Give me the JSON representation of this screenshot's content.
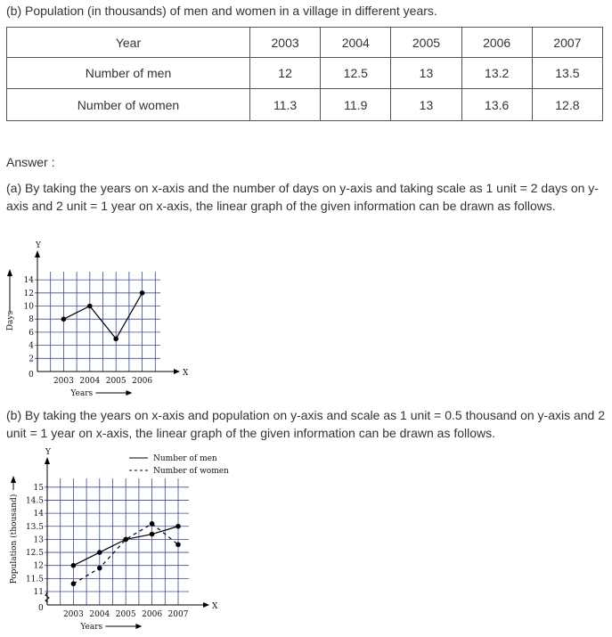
{
  "heading": "(b) Population (in thousands) of men and women in a village in different years.",
  "table": {
    "header": [
      "Year",
      "2003",
      "2004",
      "2005",
      "2006",
      "2007"
    ],
    "rows": [
      [
        "Number of men",
        "12",
        "12.5",
        "13",
        "13.2",
        "13.5"
      ],
      [
        "Number of women",
        "11.3",
        "11.9",
        "13",
        "13.6",
        "12.8"
      ]
    ]
  },
  "answer_label": "Answer :",
  "para_a": "(a) By taking the years on x-axis and the number of days on y-axis and taking scale as 1 unit = 2 days on y-axis and 2 unit = 1 year on x-axis, the linear graph of the given information can be drawn as follows.",
  "para_b": "(b) By taking the years on x-axis and population on y-axis and scale as 1 unit = 0.5 thousand on y-axis and 2 unit = 1 year on x-axis, the linear graph of the given information can be drawn as follows.",
  "colors": {
    "grid": "#3b4a9a",
    "line": "#000000"
  },
  "chart_data": [
    {
      "type": "line",
      "xlabel": "Years",
      "ylabel": "Days",
      "x_axis_letter": "X",
      "y_axis_letter": "Y",
      "origin_label": "0",
      "categories": [
        "2003",
        "2004",
        "2005",
        "2006"
      ],
      "yticks": [
        "2",
        "4",
        "6",
        "8",
        "10",
        "12",
        "14"
      ],
      "ylim": [
        0,
        14
      ],
      "grid": true,
      "series": [
        {
          "values": [
            8,
            10,
            5,
            12
          ],
          "style": "solid"
        }
      ]
    },
    {
      "type": "line",
      "xlabel": "Years",
      "ylabel": "Population (thousand)",
      "x_axis_letter": "X",
      "y_axis_letter": "Y",
      "origin_label": "0",
      "categories": [
        "2003",
        "2004",
        "2005",
        "2006",
        "2007"
      ],
      "yticks": [
        "11",
        "11.5",
        "12",
        "12.5",
        "13",
        "13.5",
        "14",
        "14.5",
        "15"
      ],
      "ylim": [
        11,
        15
      ],
      "y_axis_break": true,
      "grid": true,
      "legend": "top-right",
      "series": [
        {
          "name": "Number of men",
          "values": [
            12,
            12.5,
            13,
            13.2,
            13.5
          ],
          "style": "solid"
        },
        {
          "name": "Number of women",
          "values": [
            11.3,
            11.9,
            13,
            13.6,
            12.8
          ],
          "style": "dashed"
        }
      ]
    }
  ]
}
